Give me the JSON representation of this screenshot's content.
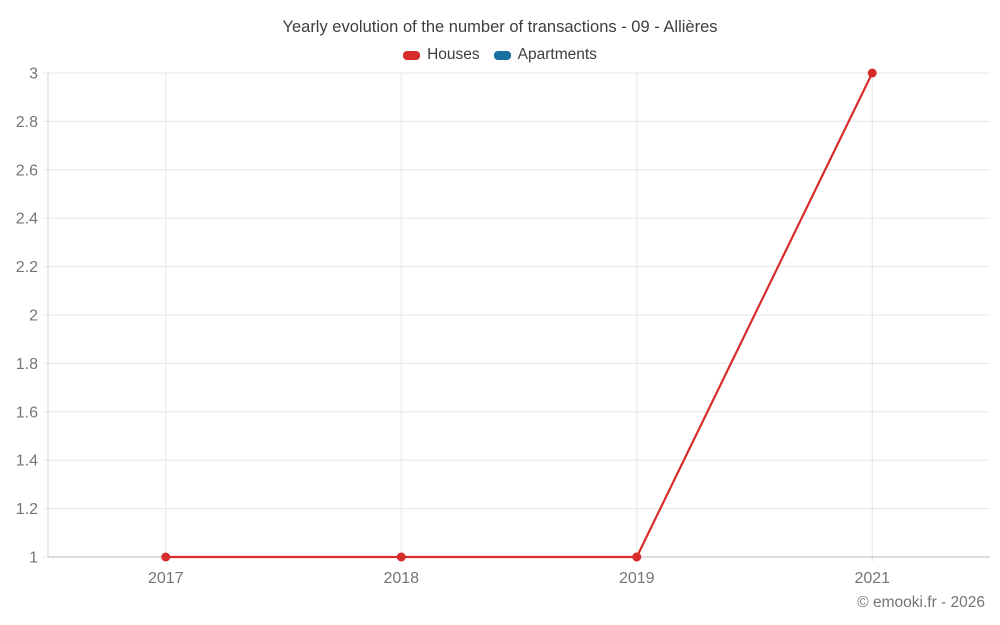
{
  "title": "Yearly evolution of the number of transactions - 09 - Allières",
  "legend": [
    {
      "label": "Houses",
      "color": "#d62c2c",
      "icon": "legend-swatch"
    },
    {
      "label": "Apartments",
      "color": "#17709f",
      "icon": "legend-swatch"
    }
  ],
  "footer": "© emooki.fr - 2026",
  "colors": {
    "houses": "#d62c2c",
    "apartments": "#17709f",
    "gridline": "#e7e7e7",
    "axis_line": "#b8b8b8",
    "left_axis_line": "#d6d6d6",
    "tick_text": "#757575"
  },
  "chart_data": {
    "type": "line",
    "title": "Yearly evolution of the number of transactions - 09 - Allières",
    "categories": [
      "2017",
      "2018",
      "2019",
      "2021"
    ],
    "series": [
      {
        "name": "Houses",
        "color": "#d62c2c",
        "values": [
          1,
          1,
          1,
          3
        ]
      },
      {
        "name": "Apartments",
        "color": "#17709f",
        "values": [
          null,
          null,
          null,
          null
        ]
      }
    ],
    "xlabel": "",
    "ylabel": "",
    "ylim": [
      1,
      3
    ],
    "y_tick_values": [
      1,
      1.2,
      1.4,
      1.6,
      1.8,
      2,
      2.2,
      2.4,
      2.6,
      2.8,
      3
    ],
    "y_tick_labels": [
      "1",
      "1.2",
      "1.4",
      "1.6",
      "1.8",
      "2",
      "2.2",
      "2.4",
      "2.6",
      "2.8",
      "3"
    ],
    "grid": true,
    "legend_position": "top",
    "marker": "circle"
  }
}
